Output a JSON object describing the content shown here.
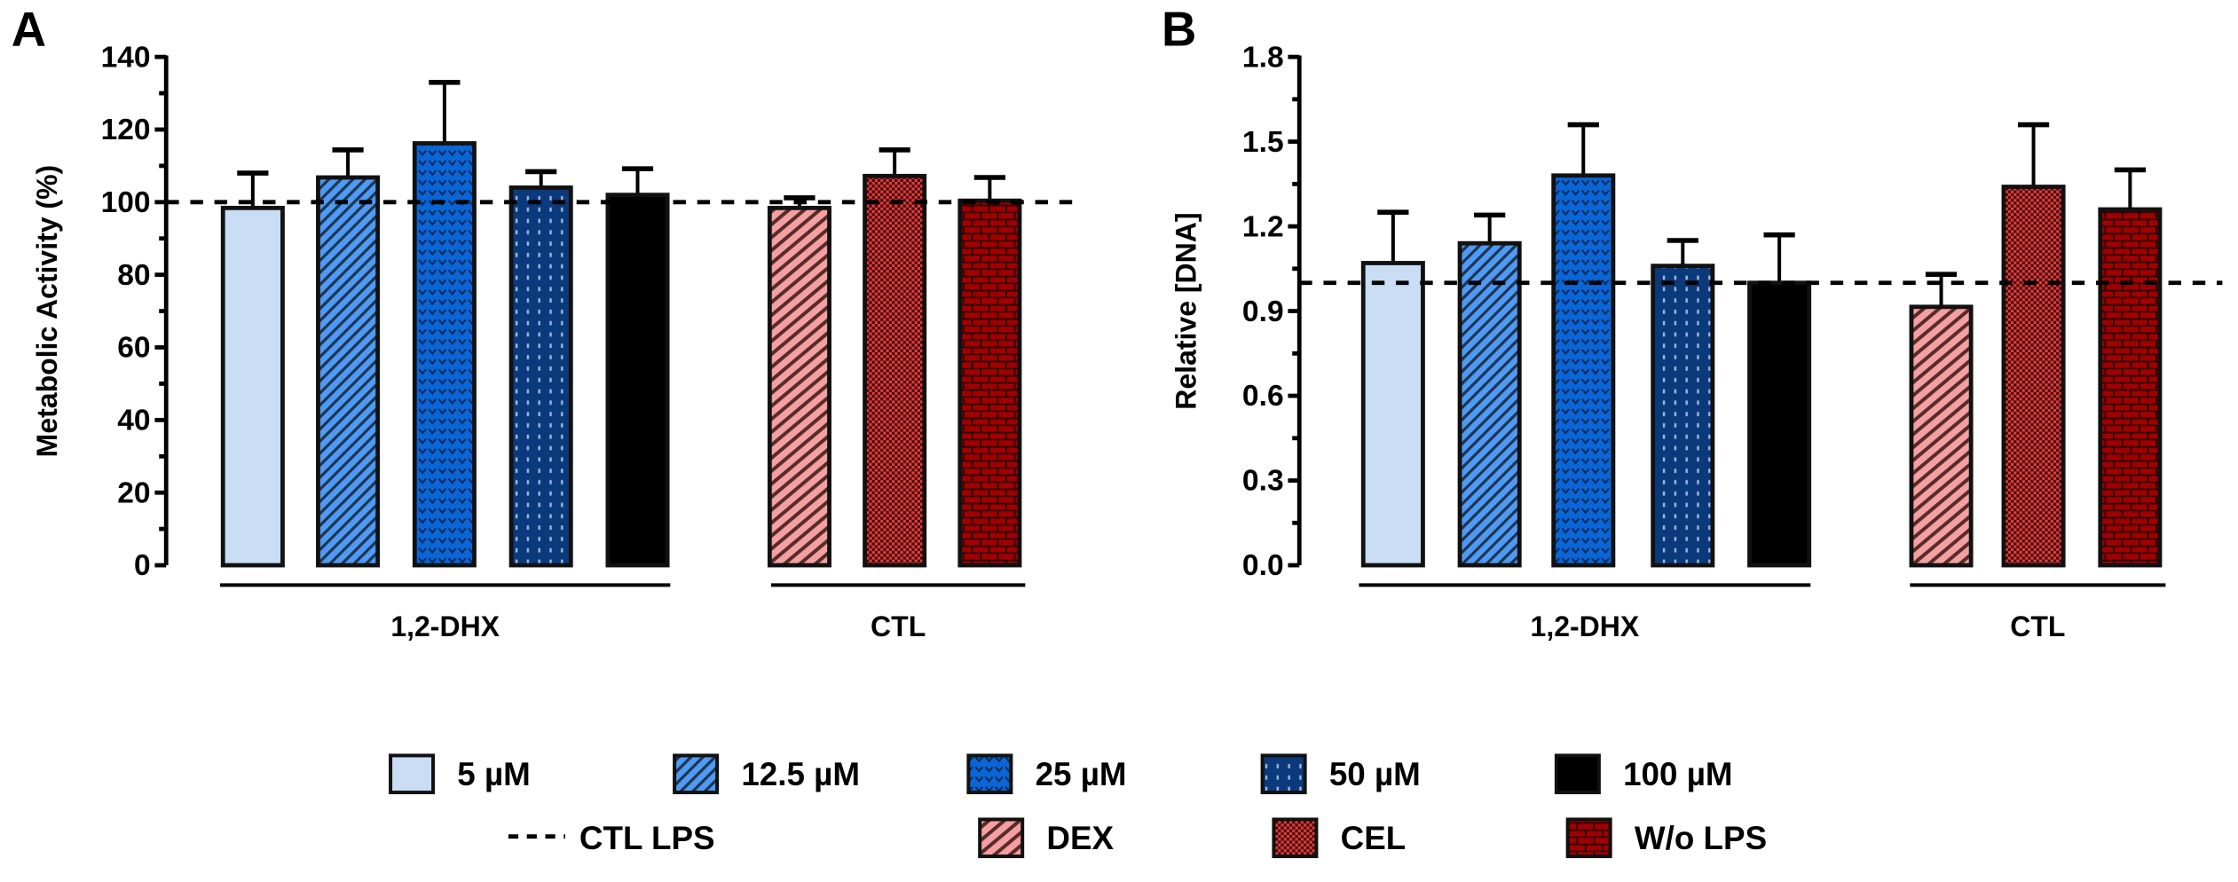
{
  "chart_data": [
    {
      "type": "bar",
      "panel": "A",
      "ylabel": "Metabolic Activity (%)",
      "ylim": [
        0,
        140
      ],
      "yticks": [
        0,
        20,
        40,
        60,
        80,
        100,
        120,
        140
      ],
      "reference_line": {
        "label": "CTL LPS",
        "value": 100
      },
      "groups": [
        {
          "label": "1,2-DHX",
          "categories": [
            "5 µM",
            "12.5 µM",
            "25 µM",
            "50 µM",
            "100 µM"
          ],
          "values": [
            98.4,
            106.8,
            116.2,
            104.0,
            102.0
          ],
          "errors": [
            9.6,
            7.6,
            16.8,
            4.4,
            7.2
          ]
        },
        {
          "label": "CTL",
          "categories": [
            "DEX",
            "CEL",
            "W/o LPS"
          ],
          "values": [
            98.4,
            107.2,
            100.4
          ],
          "errors": [
            2.8,
            7.2,
            6.4
          ]
        }
      ]
    },
    {
      "type": "bar",
      "panel": "B",
      "ylabel": "Relative [DNA]",
      "ylim": [
        0,
        1.8
      ],
      "yticks": [
        "0.0",
        "0.3",
        "0.6",
        "0.9",
        "1.2",
        "1.5",
        "1.8"
      ],
      "reference_line": {
        "label": "CTL LPS",
        "value": 1.0
      },
      "groups": [
        {
          "label": "1,2-DHX",
          "categories": [
            "5 µM",
            "12.5 µM",
            "25 µM",
            "50 µM",
            "100 µM"
          ],
          "values": [
            1.07,
            1.14,
            1.38,
            1.06,
            1.0
          ],
          "errors": [
            0.18,
            0.1,
            0.18,
            0.09,
            0.17
          ]
        },
        {
          "label": "CTL",
          "categories": [
            "DEX",
            "CEL",
            "W/o LPS"
          ],
          "values": [
            0.915,
            1.34,
            1.26
          ],
          "errors": [
            0.115,
            0.22,
            0.14
          ]
        }
      ]
    }
  ],
  "legend": {
    "row1": [
      "5 µM",
      "12.5 µM",
      "25 µM",
      "50 µM",
      "100 µM"
    ],
    "row2": [
      "CTL LPS",
      "DEX",
      "CEL",
      "W/o LPS"
    ]
  },
  "series_styles": {
    "5 µM": {
      "color": "#c9ddf5",
      "pattern": "plain"
    },
    "12.5 µM": {
      "color": "#4e9af5",
      "pattern": "diagonal"
    },
    "25 µM": {
      "color": "#0a66d6",
      "pattern": "dots"
    },
    "50 µM": {
      "color": "#0b3a7c",
      "pattern": "dashes"
    },
    "100 µM": {
      "color": "#000000",
      "pattern": "plain"
    },
    "DEX": {
      "color": "#f4a0a0",
      "pattern": "diagonal"
    },
    "CEL": {
      "color": "#e83a3a",
      "pattern": "checker"
    },
    "W/o LPS": {
      "color": "#a00000",
      "pattern": "brick"
    }
  }
}
